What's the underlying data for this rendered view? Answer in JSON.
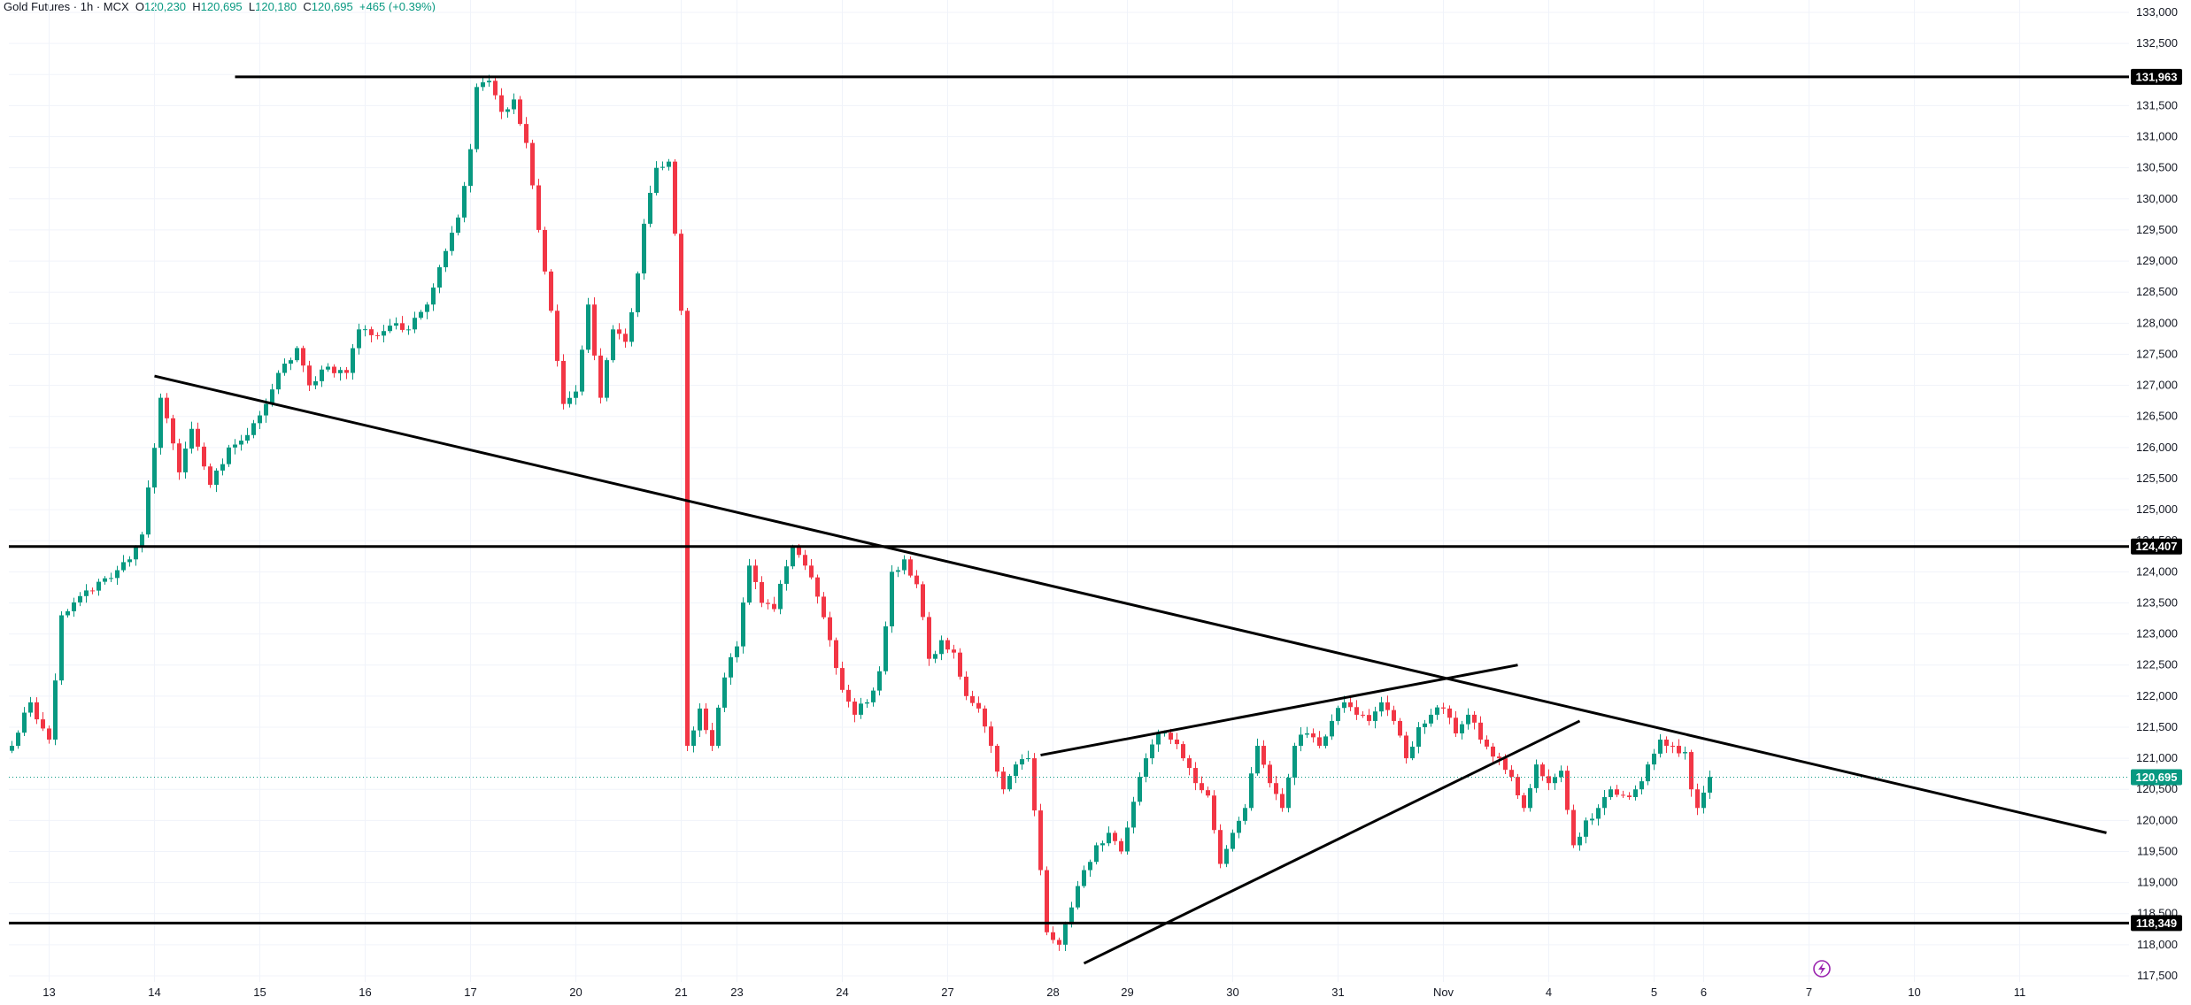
{
  "header": {
    "symbol": "Gold Futures",
    "timeframe": "1h",
    "exchange": "MCX",
    "o_label": "O",
    "o_value": "120,230",
    "h_label": "H",
    "h_value": "120,695",
    "l_label": "L",
    "l_value": "120,180",
    "c_label": "C",
    "c_value": "120,695",
    "change": "+465 (+0.39%)"
  },
  "colors": {
    "up": "#089981",
    "down": "#f23645",
    "grid": "#f0f3fa",
    "line": "#000000",
    "last_price": "#089981"
  },
  "icons": {
    "replay": "flash-icon"
  },
  "chart_data": {
    "type": "candlestick",
    "title": "",
    "ylim": [
      117400,
      133200
    ],
    "y_ticks": [
      117500,
      118000,
      118500,
      119000,
      119500,
      120000,
      120500,
      121000,
      121500,
      122000,
      122500,
      123000,
      123500,
      124000,
      124500,
      125000,
      125500,
      126000,
      126500,
      127000,
      127500,
      128000,
      128500,
      129000,
      129500,
      130000,
      130500,
      131000,
      131500,
      132000,
      132500,
      133000
    ],
    "y_tick_labels": [
      "117,500",
      "118,000",
      "118,500",
      "119,000",
      "119,500",
      "120,000",
      "120,500",
      "121,000",
      "121,500",
      "122,000",
      "122,500",
      "123,000",
      "123,500",
      "124,000",
      "124,500",
      "125,000",
      "125,500",
      "126,000",
      "126,500",
      "127,000",
      "127,500",
      "128,000",
      "128,500",
      "129,000",
      "129,500",
      "130,000",
      "130,500",
      "131,000",
      "131,500",
      "132,000",
      "132,500",
      "133,000"
    ],
    "x_labels": [
      "13",
      "14",
      "15",
      "16",
      "17",
      "20",
      "21",
      "23",
      "24",
      "27",
      "28",
      "29",
      "30",
      "31",
      "Nov",
      "4",
      "5",
      "6",
      "7",
      "10",
      "11"
    ],
    "x_label_bar_index": [
      6,
      23,
      40,
      57,
      74,
      91,
      108,
      117,
      134,
      151,
      168,
      180,
      197,
      214,
      231,
      248,
      265,
      273,
      290,
      307,
      324
    ],
    "bar_count_axis": 340,
    "horizontal_levels": [
      {
        "price": 131963,
        "label": "131,963",
        "from_bar": 36
      },
      {
        "price": 124407,
        "label": "124,407",
        "from_bar": 0
      },
      {
        "price": 118349,
        "label": "118,349",
        "from_bar": 0
      }
    ],
    "last_price": {
      "price": 120695,
      "label": "120,695"
    },
    "trendlines": [
      {
        "from": [
          23,
          127150
        ],
        "to": [
          338,
          119800
        ]
      },
      {
        "from": [
          166,
          121050
        ],
        "to": [
          243,
          122500
        ]
      },
      {
        "from": [
          173,
          117700
        ],
        "to": [
          253,
          121600
        ]
      }
    ],
    "anchors": [
      {
        "bar": 0,
        "price": 121200
      },
      {
        "bar": 3,
        "price": 121900
      },
      {
        "bar": 6,
        "price": 121300
      },
      {
        "bar": 8,
        "price": 123300
      },
      {
        "bar": 12,
        "price": 123700
      },
      {
        "bar": 16,
        "price": 123900
      },
      {
        "bar": 19,
        "price": 124200
      },
      {
        "bar": 21,
        "price": 124600
      },
      {
        "bar": 24,
        "price": 126800
      },
      {
        "bar": 27,
        "price": 125600
      },
      {
        "bar": 29,
        "price": 126300
      },
      {
        "bar": 32,
        "price": 125400
      },
      {
        "bar": 35,
        "price": 126000
      },
      {
        "bar": 38,
        "price": 126200
      },
      {
        "bar": 41,
        "price": 126700
      },
      {
        "bar": 43,
        "price": 127200
      },
      {
        "bar": 46,
        "price": 127600
      },
      {
        "bar": 48,
        "price": 127000
      },
      {
        "bar": 51,
        "price": 127300
      },
      {
        "bar": 54,
        "price": 127200
      },
      {
        "bar": 56,
        "price": 127900
      },
      {
        "bar": 59,
        "price": 127800
      },
      {
        "bar": 62,
        "price": 128000
      },
      {
        "bar": 64,
        "price": 127900
      },
      {
        "bar": 67,
        "price": 128300
      },
      {
        "bar": 69,
        "price": 128900
      },
      {
        "bar": 72,
        "price": 129700
      },
      {
        "bar": 74,
        "price": 130800
      },
      {
        "bar": 75,
        "price": 131800
      },
      {
        "bar": 77,
        "price": 131900
      },
      {
        "bar": 79,
        "price": 131400
      },
      {
        "bar": 81,
        "price": 131600
      },
      {
        "bar": 83,
        "price": 130900
      },
      {
        "bar": 85,
        "price": 129500
      },
      {
        "bar": 87,
        "price": 128200
      },
      {
        "bar": 89,
        "price": 126700
      },
      {
        "bar": 91,
        "price": 126900
      },
      {
        "bar": 93,
        "price": 128300
      },
      {
        "bar": 95,
        "price": 126800
      },
      {
        "bar": 97,
        "price": 127900
      },
      {
        "bar": 99,
        "price": 127700
      },
      {
        "bar": 101,
        "price": 128800
      },
      {
        "bar": 102,
        "price": 129600
      },
      {
        "bar": 104,
        "price": 130500
      },
      {
        "bar": 106,
        "price": 130600
      },
      {
        "bar": 108,
        "price": 128200
      },
      {
        "bar": 109,
        "price": 121200
      },
      {
        "bar": 111,
        "price": 121800
      },
      {
        "bar": 113,
        "price": 121200
      },
      {
        "bar": 115,
        "price": 122300
      },
      {
        "bar": 117,
        "price": 122800
      },
      {
        "bar": 119,
        "price": 124100
      },
      {
        "bar": 121,
        "price": 123500
      },
      {
        "bar": 123,
        "price": 123400
      },
      {
        "bar": 126,
        "price": 124400
      },
      {
        "bar": 128,
        "price": 124100
      },
      {
        "bar": 130,
        "price": 123600
      },
      {
        "bar": 132,
        "price": 122900
      },
      {
        "bar": 134,
        "price": 122100
      },
      {
        "bar": 136,
        "price": 121700
      },
      {
        "bar": 138,
        "price": 121900
      },
      {
        "bar": 140,
        "price": 122400
      },
      {
        "bar": 142,
        "price": 124000
      },
      {
        "bar": 144,
        "price": 124200
      },
      {
        "bar": 146,
        "price": 123800
      },
      {
        "bar": 148,
        "price": 122600
      },
      {
        "bar": 150,
        "price": 122900
      },
      {
        "bar": 152,
        "price": 122700
      },
      {
        "bar": 154,
        "price": 122000
      },
      {
        "bar": 156,
        "price": 121800
      },
      {
        "bar": 158,
        "price": 121200
      },
      {
        "bar": 160,
        "price": 120500
      },
      {
        "bar": 162,
        "price": 120900
      },
      {
        "bar": 164,
        "price": 121000
      },
      {
        "bar": 166,
        "price": 119200
      },
      {
        "bar": 167,
        "price": 118200
      },
      {
        "bar": 169,
        "price": 118000
      },
      {
        "bar": 171,
        "price": 118600
      },
      {
        "bar": 173,
        "price": 119200
      },
      {
        "bar": 175,
        "price": 119600
      },
      {
        "bar": 177,
        "price": 119800
      },
      {
        "bar": 179,
        "price": 119500
      },
      {
        "bar": 181,
        "price": 120300
      },
      {
        "bar": 183,
        "price": 121000
      },
      {
        "bar": 185,
        "price": 121400
      },
      {
        "bar": 187,
        "price": 121300
      },
      {
        "bar": 189,
        "price": 121000
      },
      {
        "bar": 191,
        "price": 120600
      },
      {
        "bar": 193,
        "price": 120400
      },
      {
        "bar": 195,
        "price": 119300
      },
      {
        "bar": 197,
        "price": 119800
      },
      {
        "bar": 199,
        "price": 120200
      },
      {
        "bar": 201,
        "price": 121200
      },
      {
        "bar": 203,
        "price": 120600
      },
      {
        "bar": 205,
        "price": 120200
      },
      {
        "bar": 207,
        "price": 121200
      },
      {
        "bar": 209,
        "price": 121400
      },
      {
        "bar": 211,
        "price": 121200
      },
      {
        "bar": 213,
        "price": 121600
      },
      {
        "bar": 215,
        "price": 121900
      },
      {
        "bar": 217,
        "price": 121700
      },
      {
        "bar": 219,
        "price": 121600
      },
      {
        "bar": 221,
        "price": 121900
      },
      {
        "bar": 223,
        "price": 121600
      },
      {
        "bar": 225,
        "price": 121000
      },
      {
        "bar": 227,
        "price": 121500
      },
      {
        "bar": 229,
        "price": 121700
      },
      {
        "bar": 231,
        "price": 121800
      },
      {
        "bar": 233,
        "price": 121400
      },
      {
        "bar": 235,
        "price": 121700
      },
      {
        "bar": 237,
        "price": 121300
      },
      {
        "bar": 240,
        "price": 121000
      },
      {
        "bar": 242,
        "price": 120700
      },
      {
        "bar": 244,
        "price": 120200
      },
      {
        "bar": 246,
        "price": 120900
      },
      {
        "bar": 248,
        "price": 120600
      },
      {
        "bar": 250,
        "price": 120800
      },
      {
        "bar": 252,
        "price": 119600
      },
      {
        "bar": 254,
        "price": 120000
      },
      {
        "bar": 256,
        "price": 120200
      },
      {
        "bar": 258,
        "price": 120500
      },
      {
        "bar": 260,
        "price": 120400
      },
      {
        "bar": 262,
        "price": 120500
      },
      {
        "bar": 264,
        "price": 120900
      },
      {
        "bar": 266,
        "price": 121300
      },
      {
        "bar": 268,
        "price": 121200
      },
      {
        "bar": 270,
        "price": 121100
      },
      {
        "bar": 271,
        "price": 120500
      },
      {
        "bar": 272,
        "price": 120200
      },
      {
        "bar": 274,
        "price": 120700
      }
    ]
  }
}
